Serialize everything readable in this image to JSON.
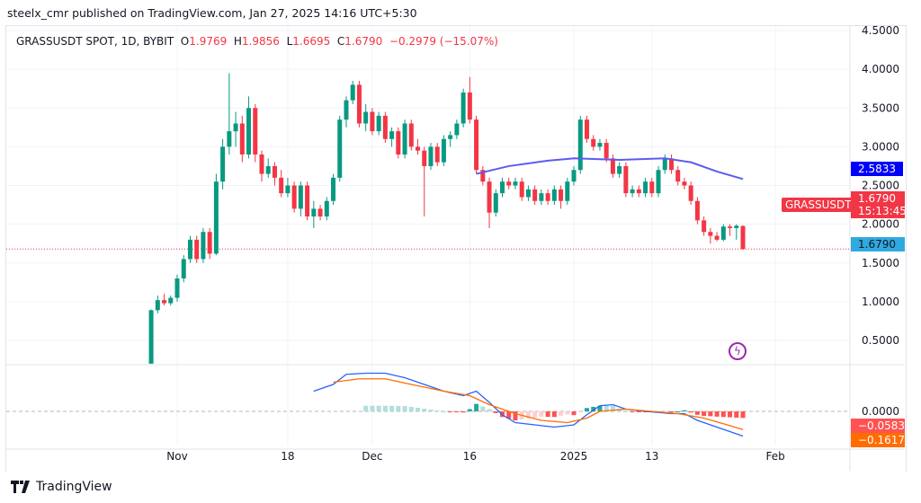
{
  "publisher_line": "steelx_cmr published on TradingView.com, Jan 27, 2025 14:16 UTC+5:30",
  "legend": {
    "symbol": "GRASSUSDT SPOT, 1D, BYBIT",
    "o_label": "O",
    "o": "1.9769",
    "h_label": "H",
    "h": "1.9856",
    "l_label": "L",
    "l": "1.6695",
    "c_label": "C",
    "c": "1.6790",
    "change": "−0.2979 (−15.07%)"
  },
  "price_axis": [
    "4.5000",
    "4.0000",
    "3.5000",
    "3.0000",
    "2.5000",
    "2.0000",
    "1.5000",
    "1.0000",
    "0.5000"
  ],
  "price_axis_values": [
    4.5,
    4.0,
    3.5,
    3.0,
    2.5,
    2.0,
    1.5,
    1.0,
    0.5
  ],
  "macd_zero_label": "0.0000",
  "time_axis": [
    {
      "label": "Nov",
      "date": "2024-11-01"
    },
    {
      "label": "18",
      "date": "2024-11-18"
    },
    {
      "label": "Dec",
      "date": "2024-12-01"
    },
    {
      "label": "16",
      "date": "2024-12-16"
    },
    {
      "label": "2025",
      "date": "2025-01-01"
    },
    {
      "label": "13",
      "date": "2025-01-13"
    },
    {
      "label": "Feb",
      "date": "2025-02-01"
    }
  ],
  "tags": {
    "ma_value": "2.5833",
    "symbol_tag": "GRASSUSDT",
    "last_price": "1.6790",
    "countdown": "15:13:45",
    "close_line_value": "1.6790",
    "macd_hist": "−0.0583",
    "macd_signal": "−0.1617"
  },
  "colors": {
    "up": "#089981",
    "down": "#f23645",
    "ma": "#5b5bf0",
    "macd": "#2962ff",
    "signal": "#ff6d00",
    "ma_tag": "#0000ff",
    "close_tag": "#2fa9e0",
    "hist_up": "#b2dfdb",
    "hist_up_strong": "#26a69a",
    "hist_down_strong": "#ff5252",
    "hist_down": "#ffcdd2"
  },
  "icons": {
    "lightning": "lightning-icon",
    "logo": "tradingview-logo-icon"
  },
  "footer": {
    "brand": "TradingView"
  },
  "chart_data": {
    "type": "candlestick",
    "title": "GRASSUSDT SPOT, 1D, BYBIT",
    "start_date": "2024-10-28",
    "ylim": [
      0.2,
      4.6
    ],
    "grid": true,
    "candles_ohlc": [
      [
        0.2,
        0.9,
        0.2,
        0.89
      ],
      [
        0.89,
        1.08,
        0.85,
        1.02
      ],
      [
        1.02,
        1.1,
        0.95,
        0.98
      ],
      [
        0.98,
        1.08,
        0.95,
        1.05
      ],
      [
        1.05,
        1.35,
        1.0,
        1.3
      ],
      [
        1.3,
        1.6,
        1.25,
        1.55
      ],
      [
        1.55,
        1.85,
        1.5,
        1.8
      ],
      [
        1.8,
        1.85,
        1.5,
        1.55
      ],
      [
        1.55,
        1.95,
        1.5,
        1.9
      ],
      [
        1.9,
        1.95,
        1.55,
        1.62
      ],
      [
        1.62,
        2.65,
        1.6,
        2.55
      ],
      [
        2.55,
        3.1,
        2.45,
        3.0
      ],
      [
        3.0,
        3.95,
        2.9,
        3.2
      ],
      [
        3.2,
        3.45,
        3.0,
        3.3
      ],
      [
        3.3,
        3.4,
        2.8,
        2.9
      ],
      [
        2.9,
        3.65,
        2.85,
        3.5
      ],
      [
        3.5,
        3.55,
        2.8,
        2.9
      ],
      [
        2.9,
        2.95,
        2.55,
        2.65
      ],
      [
        2.65,
        2.85,
        2.6,
        2.75
      ],
      [
        2.75,
        2.8,
        2.5,
        2.6
      ],
      [
        2.6,
        2.7,
        2.35,
        2.4
      ],
      [
        2.4,
        2.6,
        2.35,
        2.5
      ],
      [
        2.5,
        2.55,
        2.15,
        2.2
      ],
      [
        2.2,
        2.55,
        2.1,
        2.5
      ],
      [
        2.5,
        2.55,
        2.05,
        2.1
      ],
      [
        2.1,
        2.3,
        1.95,
        2.2
      ],
      [
        2.2,
        2.25,
        2.05,
        2.1
      ],
      [
        2.1,
        2.35,
        2.05,
        2.3
      ],
      [
        2.3,
        2.65,
        2.25,
        2.6
      ],
      [
        2.6,
        3.4,
        2.55,
        3.35
      ],
      [
        3.35,
        3.65,
        3.25,
        3.6
      ],
      [
        3.6,
        3.85,
        3.55,
        3.8
      ],
      [
        3.8,
        3.85,
        3.25,
        3.3
      ],
      [
        3.3,
        3.55,
        3.2,
        3.45
      ],
      [
        3.45,
        3.5,
        3.15,
        3.2
      ],
      [
        3.2,
        3.45,
        3.15,
        3.4
      ],
      [
        3.4,
        3.45,
        3.05,
        3.1
      ],
      [
        3.1,
        3.25,
        3.0,
        3.2
      ],
      [
        3.2,
        3.25,
        2.85,
        2.9
      ],
      [
        2.9,
        3.35,
        2.85,
        3.3
      ],
      [
        3.3,
        3.35,
        2.95,
        3.0
      ],
      [
        3.0,
        3.1,
        2.9,
        2.95
      ],
      [
        2.95,
        3.0,
        2.1,
        2.75
      ],
      [
        2.75,
        3.05,
        2.7,
        3.0
      ],
      [
        3.0,
        3.05,
        2.75,
        2.8
      ],
      [
        2.8,
        3.15,
        2.75,
        3.1
      ],
      [
        3.1,
        3.2,
        3.0,
        3.15
      ],
      [
        3.15,
        3.35,
        3.1,
        3.3
      ],
      [
        3.3,
        3.75,
        3.25,
        3.7
      ],
      [
        3.7,
        3.9,
        3.3,
        3.35
      ],
      [
        3.35,
        3.4,
        2.65,
        2.7
      ],
      [
        2.7,
        2.75,
        2.5,
        2.55
      ],
      [
        2.55,
        2.6,
        1.95,
        2.15
      ],
      [
        2.15,
        2.45,
        2.1,
        2.4
      ],
      [
        2.4,
        2.6,
        2.35,
        2.55
      ],
      [
        2.55,
        2.6,
        2.45,
        2.5
      ],
      [
        2.5,
        2.6,
        2.45,
        2.55
      ],
      [
        2.55,
        2.6,
        2.3,
        2.35
      ],
      [
        2.35,
        2.5,
        2.3,
        2.45
      ],
      [
        2.45,
        2.5,
        2.25,
        2.3
      ],
      [
        2.3,
        2.45,
        2.25,
        2.4
      ],
      [
        2.4,
        2.45,
        2.25,
        2.3
      ],
      [
        2.3,
        2.5,
        2.25,
        2.45
      ],
      [
        2.45,
        2.5,
        2.2,
        2.3
      ],
      [
        2.3,
        2.6,
        2.25,
        2.55
      ],
      [
        2.55,
        2.75,
        2.5,
        2.7
      ],
      [
        2.7,
        3.4,
        2.65,
        3.35
      ],
      [
        3.35,
        3.4,
        3.05,
        3.1
      ],
      [
        3.1,
        3.15,
        2.95,
        3.0
      ],
      [
        3.0,
        3.1,
        2.95,
        3.05
      ],
      [
        3.05,
        3.1,
        2.8,
        2.85
      ],
      [
        2.85,
        2.9,
        2.6,
        2.65
      ],
      [
        2.65,
        2.8,
        2.6,
        2.75
      ],
      [
        2.75,
        2.8,
        2.35,
        2.4
      ],
      [
        2.4,
        2.5,
        2.35,
        2.45
      ],
      [
        2.45,
        2.5,
        2.35,
        2.4
      ],
      [
        2.4,
        2.6,
        2.35,
        2.55
      ],
      [
        2.55,
        2.6,
        2.35,
        2.4
      ],
      [
        2.4,
        2.75,
        2.35,
        2.7
      ],
      [
        2.7,
        2.9,
        2.65,
        2.85
      ],
      [
        2.85,
        2.9,
        2.65,
        2.7
      ],
      [
        2.7,
        2.75,
        2.5,
        2.55
      ],
      [
        2.55,
        2.6,
        2.45,
        2.5
      ],
      [
        2.5,
        2.55,
        2.25,
        2.3
      ],
      [
        2.3,
        2.35,
        2.0,
        2.05
      ],
      [
        2.05,
        2.1,
        1.85,
        1.9
      ],
      [
        1.9,
        1.95,
        1.75,
        1.85
      ],
      [
        1.85,
        1.9,
        1.78,
        1.8
      ],
      [
        1.8,
        2.0,
        1.78,
        1.97
      ],
      [
        1.97,
        2.0,
        1.85,
        1.95
      ],
      [
        1.95,
        2.0,
        1.8,
        1.98
      ],
      [
        1.9769,
        1.9856,
        1.6695,
        1.679
      ]
    ],
    "moving_average": [
      [
        "2024-12-17",
        2.65
      ],
      [
        "2024-12-22",
        2.75
      ],
      [
        "2024-12-28",
        2.82
      ],
      [
        "2025-01-01",
        2.85
      ],
      [
        "2025-01-08",
        2.83
      ],
      [
        "2025-01-15",
        2.85
      ],
      [
        "2025-01-19",
        2.8
      ],
      [
        "2025-01-23",
        2.68
      ],
      [
        "2025-01-27",
        2.5833
      ]
    ],
    "last_close": 1.679,
    "macd": [
      [
        "2024-11-22",
        0.18
      ],
      [
        "2024-11-25",
        0.24
      ],
      [
        "2024-11-27",
        0.33
      ],
      [
        "2024-11-30",
        0.34
      ],
      [
        "2024-12-03",
        0.34
      ],
      [
        "2024-12-06",
        0.3
      ],
      [
        "2024-12-09",
        0.24
      ],
      [
        "2024-12-12",
        0.18
      ],
      [
        "2024-12-15",
        0.14
      ],
      [
        "2024-12-17",
        0.18
      ],
      [
        "2024-12-19",
        0.08
      ],
      [
        "2024-12-21",
        -0.03
      ],
      [
        "2024-12-23",
        -0.1
      ],
      [
        "2024-12-26",
        -0.12
      ],
      [
        "2024-12-29",
        -0.14
      ],
      [
        "2025-01-01",
        -0.12
      ],
      [
        "2025-01-03",
        -0.03
      ],
      [
        "2025-01-05",
        0.05
      ],
      [
        "2025-01-07",
        0.06
      ],
      [
        "2025-01-09",
        0.02
      ],
      [
        "2025-01-12",
        0.0
      ],
      [
        "2025-01-16",
        -0.02
      ],
      [
        "2025-01-18",
        -0.02
      ],
      [
        "2025-01-20",
        -0.08
      ],
      [
        "2025-01-23",
        -0.14
      ],
      [
        "2025-01-25",
        -0.18
      ],
      [
        "2025-01-27",
        -0.22
      ]
    ],
    "signal": [
      [
        "2024-11-25",
        0.26
      ],
      [
        "2024-11-29",
        0.29
      ],
      [
        "2024-12-03",
        0.29
      ],
      [
        "2024-12-07",
        0.24
      ],
      [
        "2024-12-12",
        0.18
      ],
      [
        "2024-12-16",
        0.14
      ],
      [
        "2024-12-19",
        0.06
      ],
      [
        "2024-12-23",
        -0.02
      ],
      [
        "2024-12-27",
        -0.08
      ],
      [
        "2024-12-31",
        -0.1
      ],
      [
        "2025-01-03",
        -0.06
      ],
      [
        "2025-01-05",
        0.0
      ],
      [
        "2025-01-09",
        0.02
      ],
      [
        "2025-01-13",
        0.0
      ],
      [
        "2025-01-17",
        -0.02
      ],
      [
        "2025-01-21",
        -0.06
      ],
      [
        "2025-01-24",
        -0.11
      ],
      [
        "2025-01-27",
        -0.1617
      ]
    ],
    "macd_hist_last": -0.0583
  }
}
